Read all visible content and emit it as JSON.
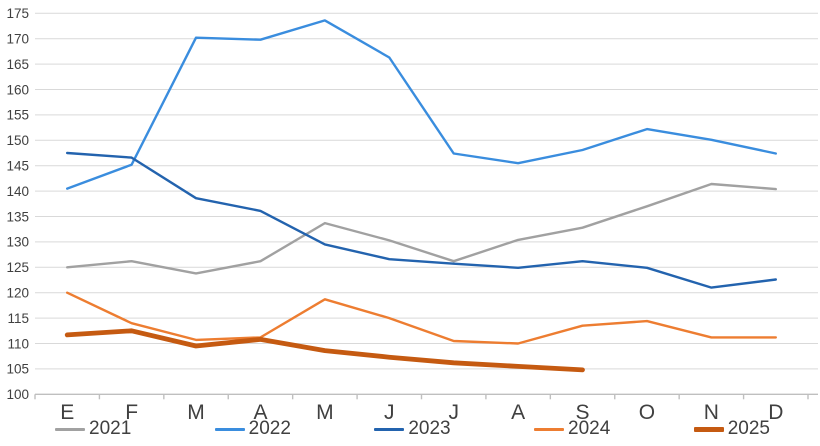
{
  "chart_data": {
    "type": "line",
    "title": "",
    "xlabel": "",
    "ylabel": "",
    "categories": [
      "E",
      "F",
      "M",
      "A",
      "M",
      "J",
      "J",
      "A",
      "S",
      "O",
      "N",
      "D"
    ],
    "y_axis": {
      "min": 100,
      "max": 175,
      "step": 5
    },
    "grid": true,
    "legend_position": "bottom",
    "series": [
      {
        "name": "2021",
        "color": "#A1A1A1",
        "thickness": "thin",
        "values": [
          125.0,
          126.2,
          123.8,
          126.2,
          133.7,
          130.3,
          126.2,
          130.4,
          132.8,
          137.0,
          141.4,
          140.4
        ]
      },
      {
        "name": "2022",
        "color": "#3A8DDE",
        "thickness": "thin",
        "values": [
          140.5,
          145.2,
          170.2,
          169.8,
          173.6,
          166.3,
          147.4,
          145.5,
          148.1,
          152.2,
          150.1,
          147.4
        ]
      },
      {
        "name": "2023",
        "color": "#2363AE",
        "thickness": "thin",
        "values": [
          147.5,
          146.6,
          138.6,
          136.1,
          129.5,
          126.6,
          125.7,
          124.9,
          126.2,
          124.9,
          121.0,
          122.6
        ]
      },
      {
        "name": "2024",
        "color": "#ED7D31",
        "thickness": "thin",
        "values": [
          120.0,
          114.0,
          110.7,
          111.2,
          118.7,
          115.0,
          110.5,
          110.0,
          113.5,
          114.4,
          111.2,
          111.2
        ]
      },
      {
        "name": "2025",
        "color": "#C55A11",
        "thickness": "thick",
        "values": [
          111.7,
          112.5,
          109.5,
          110.8,
          108.6,
          107.3,
          106.2,
          105.5,
          104.8
        ]
      }
    ]
  },
  "style": {
    "gridline_color": "#D9D9D9",
    "axis_color": "#BFBFBF",
    "label_color": "#404040",
    "background": "#FFFFFF"
  }
}
